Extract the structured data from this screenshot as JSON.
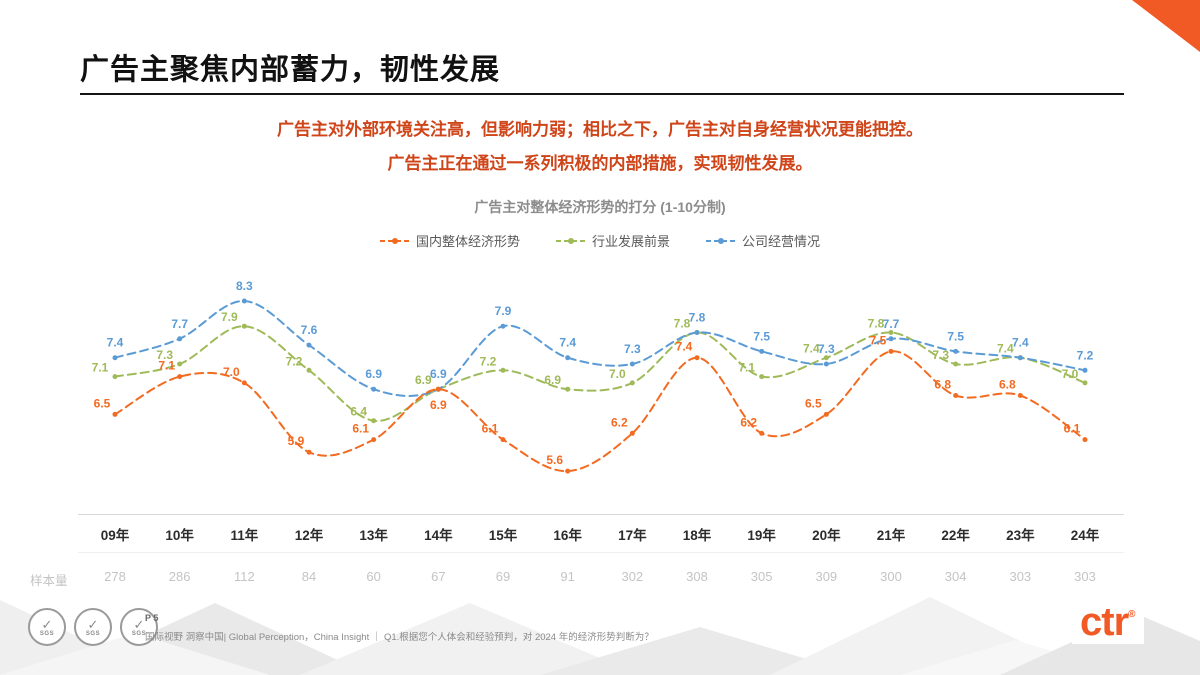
{
  "theme": {
    "accent": "#f15a24",
    "subtitle_color": "#cf4418"
  },
  "slide": {
    "title": "广告主聚焦内部蓄力，韧性发展",
    "subtitle_line1": "广告主对外部环境关注高，但影响力弱；相比之下，广告主对自身经营状况更能把控。",
    "subtitle_line2": "广告主正在通过一系列积极的内部措施，实现韧性发展。",
    "page_label": "P 5",
    "source_text": "国际视野 洞察中国| Global Perception，China Insight ｜ Q1.根据您个人体会和经验预判，对 2024 年的经济形势判断为？",
    "logo_text": "ctr",
    "logo_reg": "®",
    "sgs_label": "SGS"
  },
  "chart_data": {
    "type": "line",
    "title": "广告主对整体经济形势的打分 (1-10分制)",
    "categories": [
      "09年",
      "10年",
      "11年",
      "12年",
      "13年",
      "14年",
      "15年",
      "16年",
      "17年",
      "18年",
      "19年",
      "20年",
      "21年",
      "22年",
      "23年",
      "24年"
    ],
    "series": [
      {
        "name": "国内整体经济形势",
        "color": "#f26b21",
        "values": [
          6.5,
          7.1,
          7.0,
          5.9,
          6.1,
          6.9,
          6.1,
          5.6,
          6.2,
          7.4,
          6.2,
          6.5,
          7.5,
          6.8,
          6.8,
          6.1
        ]
      },
      {
        "name": "行业发展前景",
        "color": "#9fba58",
        "values": [
          7.1,
          7.3,
          7.9,
          7.2,
          6.4,
          6.9,
          7.2,
          6.9,
          7.0,
          7.8,
          7.1,
          7.4,
          7.8,
          7.3,
          7.4,
          7.0
        ]
      },
      {
        "name": "公司经营情况",
        "color": "#5b9bd5",
        "values": [
          7.4,
          7.7,
          8.3,
          7.6,
          6.9,
          6.9,
          7.9,
          7.4,
          7.3,
          7.8,
          7.5,
          7.3,
          7.7,
          7.5,
          7.4,
          7.2
        ]
      }
    ],
    "sample_label": "样本量",
    "sample_sizes": [
      278,
      286,
      112,
      84,
      60,
      67,
      69,
      91,
      302,
      308,
      305,
      309,
      300,
      304,
      303,
      303
    ],
    "ylim": [
      5.4,
      8.6
    ],
    "legend_position": "top",
    "grid": false
  }
}
